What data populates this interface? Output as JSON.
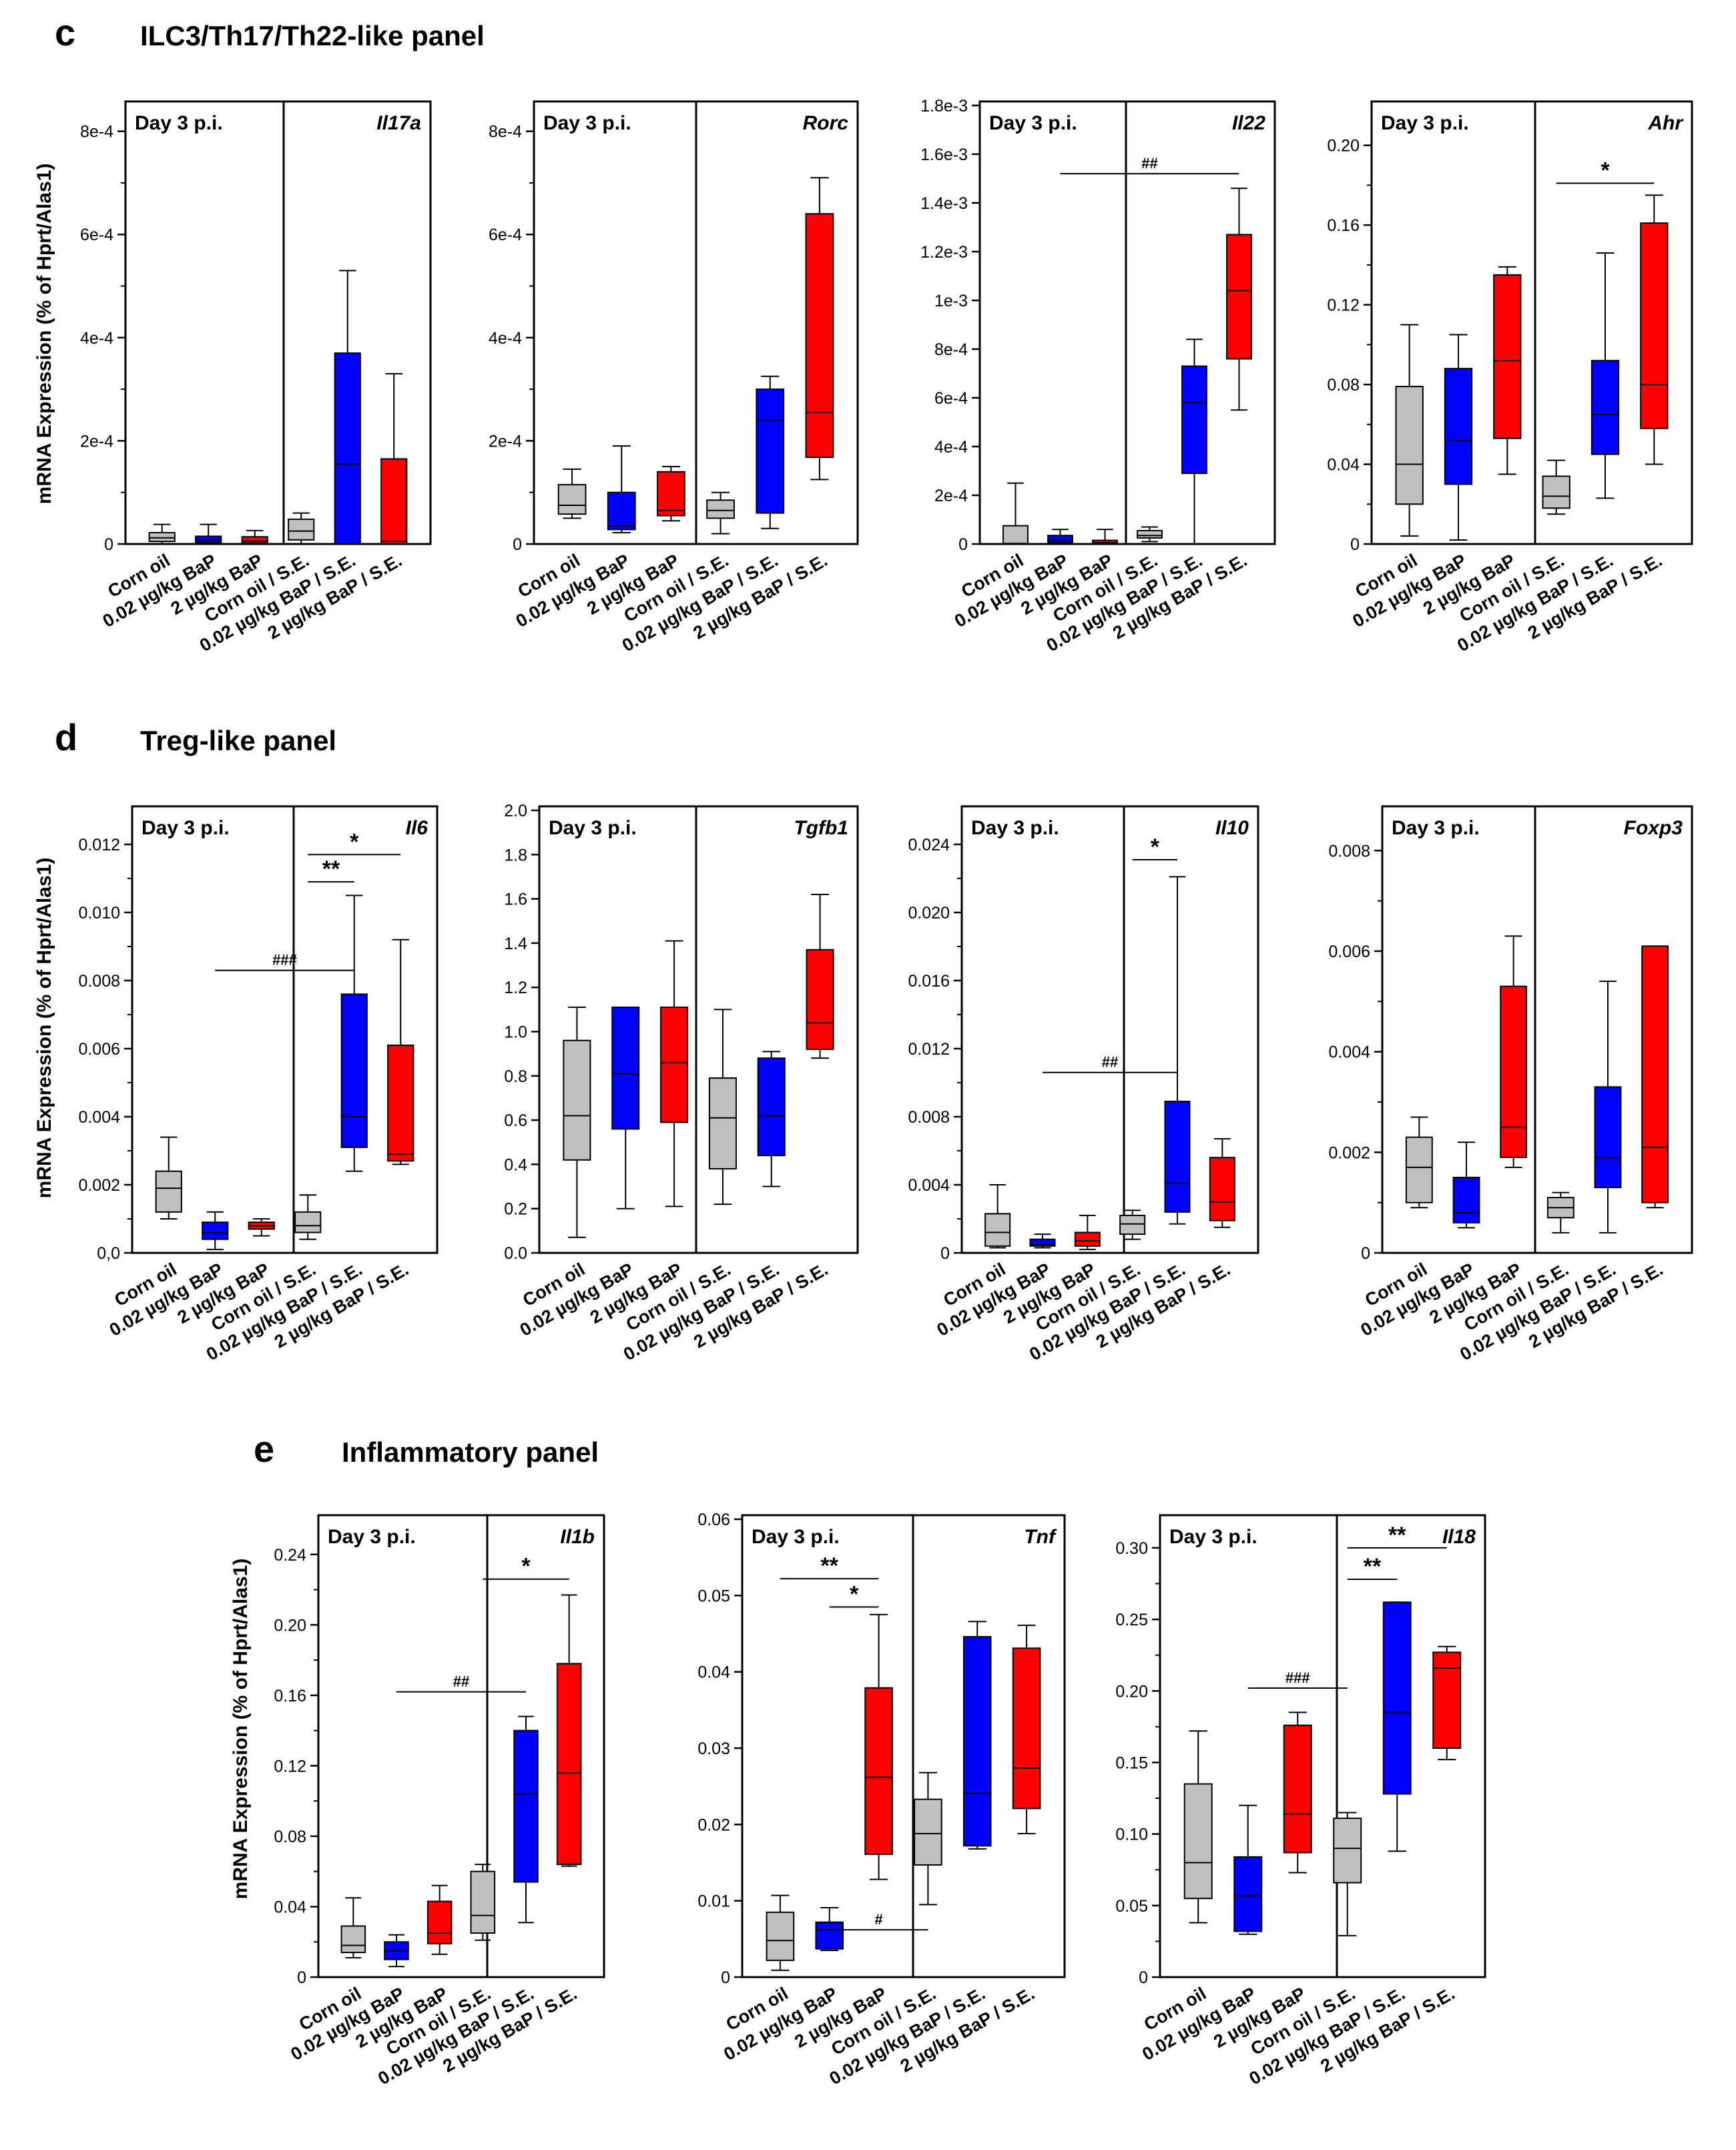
{
  "colors": {
    "g0": "#c0c0c0",
    "g1": "#0000ff",
    "g2": "#ff0000",
    "g3": "#c0c0c0",
    "g4": "#0000ff",
    "g5": "#ff0000"
  },
  "categories": [
    "Corn oil",
    "0.02 µg/kg BaP",
    "2 µg/kg BaP",
    "Corn oil / S.E.",
    "0.02 µg/kg BaP / S.E.",
    "2 µg/kg BaP / S.E."
  ],
  "panels": [
    {
      "letter": "c",
      "title": "ILC3/Th17/Th22-like panel",
      "ylabel": "mRNA Expression (% of Hprt/Alas1)",
      "charts": [
        {
          "type": "box",
          "day": "Day 3 p.i.",
          "gene": "Il17a",
          "ylim": [
            0,
            0.00085
          ],
          "ticks": [
            0,
            0.0002,
            0.0004,
            0.0006,
            0.0008
          ],
          "tick_labels": [
            "0",
            "2e-4",
            "4e-4",
            "6e-4",
            "8e-4"
          ],
          "minor": [
            0.0001,
            0.0003,
            0.0005,
            0.0007
          ],
          "boxes": [
            [
              0,
              5e-06,
              1.2e-05,
              2.2e-05,
              3.8e-05
            ],
            [
              0,
              3e-06,
              8e-06,
              1.5e-05,
              3.8e-05
            ],
            [
              0,
              2e-06,
              6e-06,
              1.4e-05,
              2.6e-05
            ],
            [
              0,
              8e-06,
              2.5e-05,
              4.8e-05,
              6e-05
            ],
            [
              0,
              0,
              0.000155,
              0.00037,
              0.00053
            ],
            [
              0,
              0,
              5e-06,
              0.000165,
              0.00033
            ]
          ],
          "sig": []
        },
        {
          "type": "box",
          "day": "Day 3 p.i.",
          "gene": "Rorc",
          "ylim": [
            0,
            0.00085
          ],
          "ticks": [
            0,
            0.0002,
            0.0004,
            0.0006,
            0.0008
          ],
          "tick_labels": [
            "0",
            "2e-4",
            "4e-4",
            "6e-4",
            "8e-4"
          ],
          "minor": [
            0.0001,
            0.0003,
            0.0005,
            0.0007
          ],
          "boxes": [
            [
              5e-05,
              5.8e-05,
              7.5e-05,
              0.000115,
              0.000145
            ],
            [
              2.2e-05,
              2.8e-05,
              3.5e-05,
              0.0001,
              0.00019
            ],
            [
              4.5e-05,
              5.5e-05,
              6.5e-05,
              0.00014,
              0.00015
            ],
            [
              2e-05,
              5e-05,
              6.5e-05,
              8.5e-05,
              0.0001
            ],
            [
              3e-05,
              6e-05,
              0.00024,
              0.0003,
              0.000325
            ],
            [
              0.000125,
              0.000168,
              0.000255,
              0.00064,
              0.00071
            ]
          ],
          "sig": []
        },
        {
          "type": "box",
          "day": "Day 3 p.i.",
          "gene": "Il22",
          "ylim": [
            0,
            0.0018
          ],
          "ticks": [
            0,
            0.0002,
            0.0004,
            0.0006,
            0.0008,
            0.001,
            0.0012,
            0.0014,
            0.0016,
            0.0018
          ],
          "tick_labels": [
            "0",
            "2e-4",
            "4e-4",
            "6e-4",
            "8e-4",
            "1e-3",
            "1.2e-3",
            "1.4e-3",
            "1.6e-3",
            "1.8e-3"
          ],
          "minor": [],
          "boxes": [
            [
              0,
              0,
              2e-06,
              7.5e-05,
              0.00025
            ],
            [
              0,
              5e-06,
              1.5e-05,
              3.5e-05,
              6e-05
            ],
            [
              0,
              0,
              5e-06,
              1.5e-05,
              6e-05
            ],
            [
              1e-05,
              2.5e-05,
              3.5e-05,
              5.5e-05,
              7e-05
            ],
            [
              0,
              0.00029,
              0.00058,
              0.00073,
              0.00084
            ],
            [
              0.00055,
              0.00076,
              0.00104,
              0.00127,
              0.00146
            ]
          ],
          "sig": [
            {
              "label": "##",
              "from": 1,
              "to": 5,
              "y": 0.00152,
              "style": "line"
            }
          ]
        },
        {
          "type": "box",
          "day": "Day 3 p.i.",
          "gene": "Ahr",
          "ylim": [
            0,
            0.22
          ],
          "ticks": [
            0,
            0.04,
            0.08,
            0.12,
            0.16,
            0.2
          ],
          "tick_labels": [
            "0",
            "0.04",
            "0.08",
            "0.12",
            "0.16",
            "0.20"
          ],
          "minor": [
            0.02,
            0.06,
            0.1,
            0.14,
            0.18
          ],
          "boxes": [
            [
              0.004,
              0.02,
              0.04,
              0.079,
              0.11
            ],
            [
              0.002,
              0.03,
              0.052,
              0.088,
              0.105
            ],
            [
              0.035,
              0.053,
              0.092,
              0.135,
              0.139
            ],
            [
              0.015,
              0.018,
              0.024,
              0.034,
              0.042
            ],
            [
              0.023,
              0.045,
              0.065,
              0.092,
              0.146
            ],
            [
              0.04,
              0.058,
              0.08,
              0.161,
              0.175
            ]
          ],
          "sig": [
            {
              "label": "*",
              "from": 3,
              "to": 5,
              "y": 0.181,
              "style": "line"
            }
          ]
        }
      ]
    },
    {
      "letter": "d",
      "title": "Treg-like panel",
      "ylabel": "mRNA Expression (% of Hprt/Alas1)",
      "charts": [
        {
          "type": "box",
          "day": "Day 3 p.i.",
          "gene": "Il6",
          "ylim": [
            0,
            0.013
          ],
          "ticks": [
            0,
            0.002,
            0.004,
            0.006,
            0.008,
            0.01,
            0.012
          ],
          "tick_labels": [
            "0,0",
            "0.002",
            "0.004",
            "0.006",
            "0.008",
            "0.010",
            "0.012"
          ],
          "minor": [
            0.001,
            0.003,
            0.005,
            0.007,
            0.009,
            0.011
          ],
          "boxes": [
            [
              0.001,
              0.0012,
              0.0019,
              0.0024,
              0.0034
            ],
            [
              0.0001,
              0.0004,
              0.0006,
              0.0009,
              0.0012
            ],
            [
              0.0005,
              0.0007,
              0.0008,
              0.0009,
              0.001
            ],
            [
              0.0004,
              0.0006,
              0.0008,
              0.0012,
              0.0017
            ],
            [
              0.0024,
              0.0031,
              0.004,
              0.0076,
              0.0105
            ],
            [
              0.0026,
              0.0027,
              0.0029,
              0.0061,
              0.0092
            ]
          ],
          "sig": [
            {
              "label": "###",
              "from": 1,
              "to": 4,
              "y": 0.0083,
              "style": "line"
            },
            {
              "label": "**",
              "from": 3,
              "to": 4,
              "y": 0.0109,
              "style": "line"
            },
            {
              "label": "*",
              "from": 3,
              "to": 5,
              "y": 0.0117,
              "style": "line"
            }
          ]
        },
        {
          "type": "box",
          "day": "Day 3 p.i.",
          "gene": "Tgfb1",
          "ylim": [
            0,
            2.0
          ],
          "ticks": [
            0,
            0.2,
            0.4,
            0.6,
            0.8,
            1.0,
            1.2,
            1.4,
            1.6,
            1.8,
            2.0
          ],
          "tick_labels": [
            "0.0",
            "0.2",
            "0.4",
            "0.6",
            "0.8",
            "1.0",
            "1.2",
            "1.4",
            "1.6",
            "1.8",
            "2.0"
          ],
          "minor": [],
          "boxes": [
            [
              0.07,
              0.42,
              0.62,
              0.96,
              1.11
            ],
            [
              0.2,
              0.56,
              0.81,
              1.11,
              1.11
            ],
            [
              0.21,
              0.59,
              0.86,
              1.11,
              1.41
            ],
            [
              0.22,
              0.38,
              0.61,
              0.79,
              1.1
            ],
            [
              0.3,
              0.44,
              0.62,
              0.88,
              0.91
            ],
            [
              0.88,
              0.92,
              1.04,
              1.37,
              1.62
            ]
          ],
          "sig": []
        },
        {
          "type": "box",
          "day": "Day 3 p.i.",
          "gene": "Il10",
          "ylim": [
            0,
            0.026
          ],
          "ticks": [
            0,
            0.004,
            0.008,
            0.012,
            0.016,
            0.02,
            0.024
          ],
          "tick_labels": [
            "0",
            "0.004",
            "0.008",
            "0.012",
            "0.016",
            "0.020",
            "0.024"
          ],
          "minor": [
            0.002,
            0.006,
            0.01,
            0.014,
            0.018,
            0.022
          ],
          "boxes": [
            [
              0.0003,
              0.0004,
              0.0012,
              0.0023,
              0.004
            ],
            [
              0.0003,
              0.0004,
              0.0005,
              0.0008,
              0.0011
            ],
            [
              0.0002,
              0.0004,
              0.0007,
              0.0012,
              0.0022
            ],
            [
              0.0008,
              0.0011,
              0.0017,
              0.0022,
              0.0025
            ],
            [
              0.0017,
              0.0024,
              0.0041,
              0.0089,
              0.0221
            ],
            [
              0.0015,
              0.0019,
              0.003,
              0.0056,
              0.0067
            ]
          ],
          "sig": [
            {
              "label": "##",
              "from": 1,
              "to": 4,
              "y": 0.0106,
              "style": "line"
            },
            {
              "label": "*",
              "from": 3,
              "to": 4,
              "y": 0.0231,
              "style": "line"
            }
          ]
        },
        {
          "type": "box",
          "day": "Day 3 p.i.",
          "gene": "Foxp3",
          "ylim": [
            0,
            0.0088
          ],
          "ticks": [
            0,
            0.002,
            0.004,
            0.006,
            0.008
          ],
          "tick_labels": [
            "0",
            "0.002",
            "0.004",
            "0.006",
            "0.008"
          ],
          "minor": [
            0.001,
            0.003,
            0.005,
            0.007
          ],
          "boxes": [
            [
              0.0009,
              0.001,
              0.0017,
              0.0023,
              0.0027
            ],
            [
              0.0005,
              0.0006,
              0.0008,
              0.0015,
              0.0022
            ],
            [
              0.0017,
              0.0019,
              0.0025,
              0.0053,
              0.0063
            ],
            [
              0.0004,
              0.0007,
              0.0009,
              0.0011,
              0.0012
            ],
            [
              0.0004,
              0.0013,
              0.0019,
              0.0033,
              0.0054
            ],
            [
              0.0009,
              0.001,
              0.0021,
              0.0061,
              0.0061
            ]
          ],
          "sig": []
        }
      ]
    },
    {
      "letter": "e",
      "title": "Inflammatory panel",
      "ylabel": "mRNA Expression (% of Hprt/Alas1)",
      "charts": [
        {
          "type": "box",
          "day": "Day 3 p.i.",
          "gene": "Il1b",
          "ylim": [
            0,
            0.26
          ],
          "ticks": [
            0,
            0.04,
            0.08,
            0.12,
            0.16,
            0.2,
            0.24
          ],
          "tick_labels": [
            "0",
            "0.04",
            "0.08",
            "0.12",
            "0.16",
            "0.20",
            "0.24"
          ],
          "minor": [
            0.02,
            0.06,
            0.1,
            0.14,
            0.18,
            0.22
          ],
          "boxes": [
            [
              0.011,
              0.014,
              0.018,
              0.029,
              0.045
            ],
            [
              0.006,
              0.01,
              0.015,
              0.02,
              0.024
            ],
            [
              0.013,
              0.019,
              0.025,
              0.043,
              0.052
            ],
            [
              0.021,
              0.025,
              0.035,
              0.06,
              0.064
            ],
            [
              0.031,
              0.054,
              0.104,
              0.14,
              0.148
            ],
            [
              0.063,
              0.064,
              0.116,
              0.178,
              0.217
            ]
          ],
          "sig": [
            {
              "label": "##",
              "from": 1,
              "to": 4,
              "y": 0.162,
              "style": "line"
            },
            {
              "label": "*",
              "from": 3,
              "to": 5,
              "y": 0.226,
              "style": "line"
            }
          ]
        },
        {
          "type": "box",
          "day": "Day 3 p.i.",
          "gene": "Tnf",
          "ylim": [
            0,
            0.06
          ],
          "ticks": [
            0,
            0.01,
            0.02,
            0.03,
            0.04,
            0.05,
            0.06
          ],
          "tick_labels": [
            "0",
            "0.01",
            "0.02",
            "0.03",
            "0.04",
            "0.05",
            "0.06"
          ],
          "minor": [],
          "boxes": [
            [
              0.0009,
              0.0022,
              0.0048,
              0.0085,
              0.0107
            ],
            [
              0.0035,
              0.0037,
              0.0062,
              0.0072,
              0.0091
            ],
            [
              0.0128,
              0.0161,
              0.0262,
              0.0379,
              0.0475
            ],
            [
              0.0095,
              0.0147,
              0.0188,
              0.0233,
              0.0268
            ],
            [
              0.0168,
              0.0172,
              0.0241,
              0.0446,
              0.0466
            ],
            [
              0.0188,
              0.0221,
              0.0274,
              0.0431,
              0.0461
            ]
          ],
          "sig": [
            {
              "label": "#",
              "from": 1,
              "to": 3,
              "y": 0.0062,
              "style": "line"
            },
            {
              "label": "*",
              "from": 1,
              "to": 2,
              "y": 0.0485,
              "style": "line"
            },
            {
              "label": "**",
              "from": 0,
              "to": 2,
              "y": 0.0522,
              "style": "line"
            }
          ]
        },
        {
          "type": "box",
          "day": "Day 3 p.i.",
          "gene": "Il18",
          "ylim": [
            0,
            0.32
          ],
          "ticks": [
            0,
            0.05,
            0.1,
            0.15,
            0.2,
            0.25,
            0.3
          ],
          "tick_labels": [
            "0",
            "0.05",
            "0.10",
            "0.15",
            "0.20",
            "0.25",
            "0.30"
          ],
          "minor": [
            0.025,
            0.075,
            0.125,
            0.175,
            0.225,
            0.275
          ],
          "boxes": [
            [
              0.038,
              0.055,
              0.08,
              0.135,
              0.172
            ],
            [
              0.03,
              0.032,
              0.057,
              0.084,
              0.12
            ],
            [
              0.073,
              0.087,
              0.114,
              0.176,
              0.185
            ],
            [
              0.029,
              0.066,
              0.09,
              0.111,
              0.115
            ],
            [
              0.088,
              0.128,
              0.185,
              0.262,
              0.262
            ],
            [
              0.152,
              0.16,
              0.216,
              0.227,
              0.231
            ]
          ],
          "sig": [
            {
              "label": "###",
              "from": 1,
              "to": 3,
              "y": 0.202,
              "style": "line"
            },
            {
              "label": "**",
              "from": 3,
              "to": 4,
              "y": 0.278,
              "style": "line"
            },
            {
              "label": "**",
              "from": 3,
              "to": 5,
              "y": 0.3,
              "style": "line"
            }
          ]
        }
      ]
    }
  ]
}
